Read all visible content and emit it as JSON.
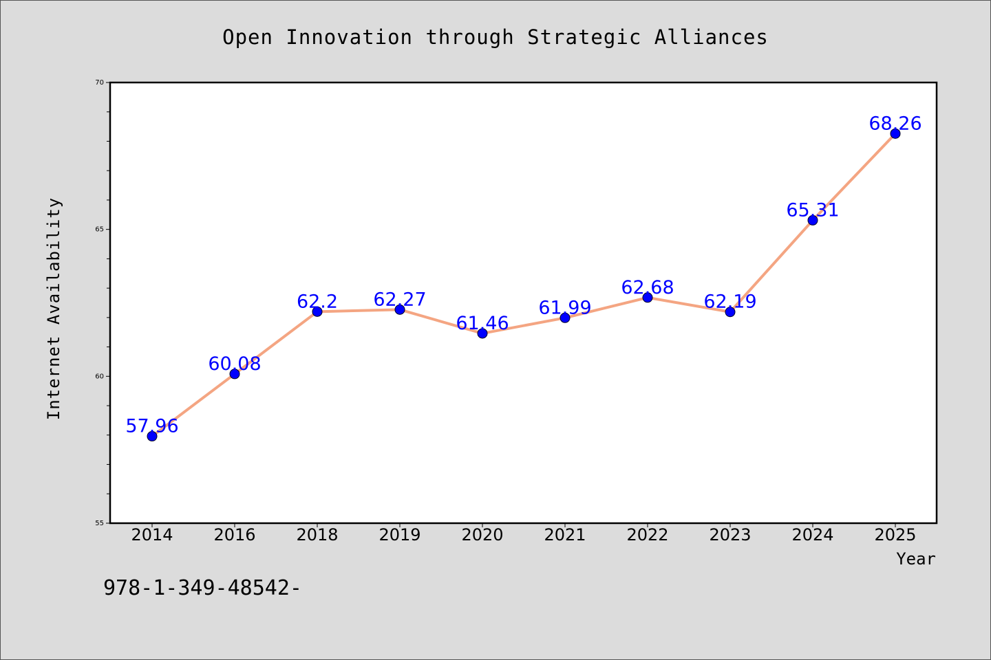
{
  "chart_data": {
    "type": "line",
    "title": "Open Innovation through Strategic Alliances",
    "xlabel": "Year",
    "ylabel": "Internet Availability",
    "categories": [
      "2014",
      "2016",
      "2018",
      "2019",
      "2020",
      "2021",
      "2022",
      "2023",
      "2024",
      "2025"
    ],
    "values": [
      57.96,
      60.08,
      62.2,
      62.27,
      61.46,
      61.99,
      62.68,
      62.19,
      65.31,
      68.26
    ],
    "data_labels": [
      "57.96",
      "60.08",
      "62.2",
      "62.27",
      "61.46",
      "61.99",
      "62.68",
      "62.19",
      "65.31",
      "68.26"
    ],
    "ylim": [
      55,
      70
    ],
    "yticks": [
      55,
      60,
      65,
      70
    ],
    "grid": false,
    "line_color": "#f4a582",
    "marker_color": "#0000ff",
    "label_color": "#0000ff"
  },
  "footer_text": "978-1-349-48542-"
}
